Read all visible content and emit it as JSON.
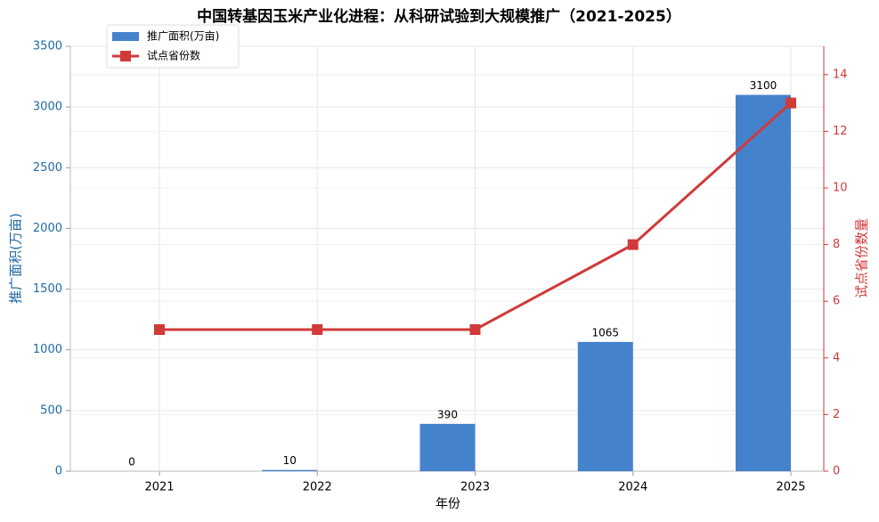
{
  "chart_data": {
    "type": "bar-line",
    "title": "中国转基因玉米产业化进程：从科研试验到大规模推广（2021-2025）",
    "x_label": "年份",
    "y_label": "推广面积(万亩)",
    "y2_label": "试点省份数量",
    "categories": [
      "2021",
      "2022",
      "2023",
      "2024",
      "2025"
    ],
    "series": [
      {
        "name": "推广面积(万亩)",
        "type": "bar",
        "color": "#4482cc",
        "values": [
          0,
          10,
          390,
          1065,
          3100
        ]
      },
      {
        "name": "试点省份数",
        "type": "line",
        "color": "#d03a3a",
        "axis": "y2",
        "values": [
          5,
          5,
          5,
          8,
          13
        ]
      }
    ],
    "ylim": [
      0,
      3500
    ],
    "yticks": [
      0,
      500,
      1000,
      1500,
      2000,
      2500,
      3000,
      3500
    ],
    "y2lim": [
      0,
      15
    ],
    "y2ticks": [
      0,
      2,
      4,
      6,
      8,
      10,
      12,
      14
    ],
    "y_color": "#1f6aa5",
    "y2_color": "#d03a3a",
    "grid": true,
    "legend": "upper-left"
  }
}
